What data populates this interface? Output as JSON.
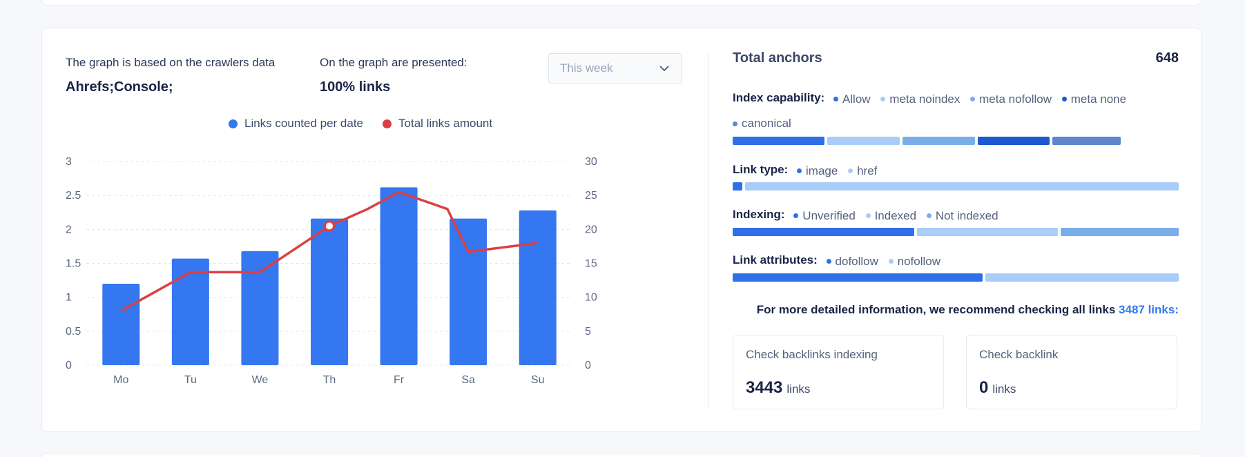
{
  "header": {
    "crawlers_label": "The graph is based on the crawlers data",
    "crawlers_value": "Ahrefs;Console;",
    "presented_label": "On the graph are presented:",
    "presented_value": "100% links",
    "period_select": "This week"
  },
  "legend": {
    "series1": "Links counted per date",
    "series2": "Total links amount"
  },
  "colors": {
    "bar": "#3477f0",
    "line": "#dc3f42",
    "allow": "#2f6fe8",
    "meta_noindex": "#a8cdf7",
    "meta_nofollow": "#7aaee8",
    "meta_none": "#1c58d2",
    "canonical": "#5d86cf",
    "light": "#a8cdf7",
    "mid": "#7aaee8"
  },
  "chart_data": {
    "type": "bar",
    "categories": [
      "Mo",
      "Tu",
      "We",
      "Th",
      "Fr",
      "Sa",
      "Su"
    ],
    "series": [
      {
        "name": "Links counted per date",
        "type": "bar",
        "axis": "left",
        "values": [
          1.2,
          1.57,
          1.68,
          2.16,
          2.62,
          2.16,
          2.28
        ]
      },
      {
        "name": "Total links amount",
        "type": "line",
        "axis": "right",
        "values": [
          8,
          13.7,
          13.7,
          20.5,
          25.5,
          16.7,
          18
        ]
      }
    ],
    "extra_line_points": [
      {
        "x": 3.55,
        "y": 23
      },
      {
        "x": 4.7,
        "y": 23
      }
    ],
    "left_ticks": [
      "0",
      "0.5",
      "1",
      "1.5",
      "2",
      "2.5",
      "3"
    ],
    "right_ticks": [
      "0",
      "5",
      "10",
      "15",
      "20",
      "25",
      "30"
    ],
    "ylim_left": [
      0,
      3
    ],
    "ylim_right": [
      0,
      30
    ],
    "grid": true,
    "legend_position": "top-center"
  },
  "right": {
    "total_label": "Total anchors",
    "total_value": "648",
    "index_label": "Index capability:",
    "index_items": [
      "Allow",
      "meta noindex",
      "meta nofollow",
      "meta none",
      "canonical"
    ],
    "linktype_label": "Link type:",
    "linktype_items": [
      "image",
      "href"
    ],
    "indexing_label": "Indexing:",
    "indexing_items": [
      "Unverified",
      "Indexed",
      "Not indexed"
    ],
    "attr_label": "Link attributes:",
    "attr_items": [
      "dofollow",
      "nofollow"
    ],
    "recommend_text": "For more detailed information, we recommend checking all links",
    "recommend_link": "3487 links:",
    "box1_title": "Check backlinks indexing",
    "box1_value": "3443",
    "box1_unit": "links",
    "box2_title": "Check backlink",
    "box2_value": "0",
    "box2_unit": "links"
  }
}
